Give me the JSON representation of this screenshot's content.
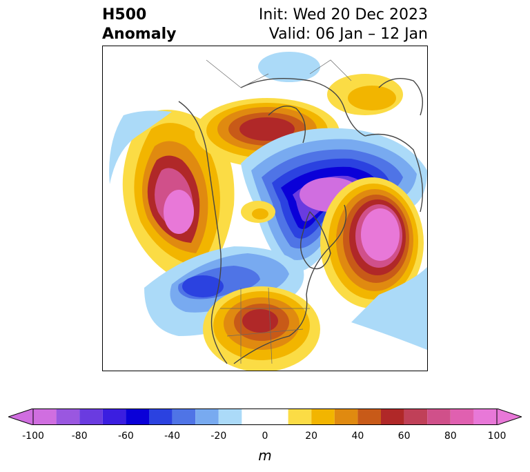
{
  "title": {
    "left_line1": "H500",
    "left_line2": "Anomaly",
    "init": "Init: Wed 20 Dec 2023",
    "valid": "Valid: 06 Jan – 12 Jan"
  },
  "colorbar": {
    "unit": "m",
    "min": -100,
    "max": 100,
    "ticks": [
      "-100",
      "-80",
      "-60",
      "-40",
      "-20",
      "0",
      "20",
      "40",
      "60",
      "80",
      "100"
    ],
    "bins": [
      {
        "from": -100,
        "to": -90,
        "color": "#d06ee0"
      },
      {
        "from": -90,
        "to": -80,
        "color": "#9a57e0"
      },
      {
        "from": -80,
        "to": -70,
        "color": "#6a3be0"
      },
      {
        "from": -70,
        "to": -60,
        "color": "#3b1ee0"
      },
      {
        "from": -60,
        "to": -50,
        "color": "#0a00d8"
      },
      {
        "from": -50,
        "to": -40,
        "color": "#2b42e0"
      },
      {
        "from": -40,
        "to": -30,
        "color": "#4f74e6"
      },
      {
        "from": -30,
        "to": -20,
        "color": "#78aaf0"
      },
      {
        "from": -20,
        "to": -10,
        "color": "#abdaf8"
      },
      {
        "from": -10,
        "to": 10,
        "color": "#ffffff"
      },
      {
        "from": 10,
        "to": 20,
        "color": "#fbdc45"
      },
      {
        "from": 20,
        "to": 30,
        "color": "#f2b500"
      },
      {
        "from": 30,
        "to": 40,
        "color": "#e08a10"
      },
      {
        "from": 40,
        "to": 50,
        "color": "#c85a18"
      },
      {
        "from": 50,
        "to": 60,
        "color": "#b02828"
      },
      {
        "from": 60,
        "to": 70,
        "color": "#c04058"
      },
      {
        "from": 70,
        "to": 80,
        "color": "#d0508a"
      },
      {
        "from": 80,
        "to": 90,
        "color": "#e060b0"
      },
      {
        "from": 90,
        "to": 100,
        "color": "#e878d8"
      }
    ],
    "under_color": "#d06ee0",
    "over_color": "#e878d8"
  }
}
